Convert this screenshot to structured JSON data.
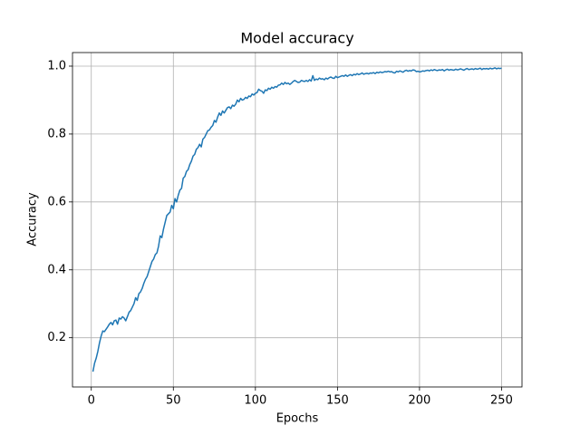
{
  "chart_data": {
    "type": "line",
    "title": "Model accuracy",
    "x_label": "Epochs",
    "y_label": "Accuracy",
    "color": "#1f77b4",
    "grid": true,
    "xlim": [
      -11.45,
      262.45
    ],
    "ylim": [
      0.055,
      1.04
    ],
    "xticks": [
      0,
      50,
      100,
      150,
      200,
      250
    ],
    "yticks": [
      0.2,
      0.4,
      0.6,
      0.8,
      {
        "value": 1,
        "label": "1.0"
      }
    ],
    "x": [
      1,
      2,
      3,
      4,
      5,
      6,
      7,
      8,
      9,
      10,
      11,
      12,
      13,
      14,
      15,
      16,
      17,
      18,
      19,
      20,
      21,
      22,
      23,
      24,
      25,
      26,
      27,
      28,
      29,
      30,
      31,
      32,
      33,
      34,
      35,
      36,
      37,
      38,
      39,
      40,
      41,
      42,
      43,
      44,
      45,
      46,
      47,
      48,
      49,
      50,
      51,
      52,
      53,
      54,
      55,
      56,
      57,
      58,
      59,
      60,
      61,
      62,
      63,
      64,
      65,
      66,
      67,
      68,
      69,
      70,
      71,
      72,
      73,
      74,
      75,
      76,
      77,
      78,
      79,
      80,
      81,
      82,
      83,
      84,
      85,
      86,
      87,
      88,
      89,
      90,
      91,
      92,
      93,
      94,
      95,
      96,
      97,
      98,
      99,
      100,
      101,
      102,
      103,
      104,
      105,
      106,
      107,
      108,
      109,
      110,
      111,
      112,
      113,
      114,
      115,
      116,
      117,
      118,
      119,
      120,
      121,
      122,
      123,
      124,
      125,
      126,
      127,
      128,
      129,
      130,
      131,
      132,
      133,
      134,
      135,
      136,
      137,
      138,
      139,
      140,
      141,
      142,
      143,
      144,
      145,
      146,
      147,
      148,
      149,
      150,
      151,
      152,
      153,
      154,
      155,
      156,
      157,
      158,
      159,
      160,
      161,
      162,
      163,
      164,
      165,
      166,
      167,
      168,
      169,
      170,
      171,
      172,
      173,
      174,
      175,
      176,
      177,
      178,
      179,
      180,
      181,
      182,
      183,
      184,
      185,
      186,
      187,
      188,
      189,
      190,
      191,
      192,
      193,
      194,
      195,
      196,
      197,
      198,
      199,
      200,
      201,
      202,
      203,
      204,
      205,
      206,
      207,
      208,
      209,
      210,
      211,
      212,
      213,
      214,
      215,
      216,
      217,
      218,
      219,
      220,
      221,
      222,
      223,
      224,
      225,
      226,
      227,
      228,
      229,
      230,
      231,
      232,
      233,
      234,
      235,
      236,
      237,
      238,
      239,
      240,
      241,
      242,
      243,
      244,
      245,
      246,
      247,
      248,
      249,
      250
    ],
    "values": [
      0.1,
      0.125,
      0.14,
      0.16,
      0.185,
      0.205,
      0.22,
      0.218,
      0.225,
      0.232,
      0.24,
      0.245,
      0.238,
      0.25,
      0.252,
      0.24,
      0.258,
      0.255,
      0.262,
      0.258,
      0.25,
      0.262,
      0.275,
      0.28,
      0.29,
      0.3,
      0.318,
      0.31,
      0.33,
      0.335,
      0.345,
      0.36,
      0.372,
      0.38,
      0.395,
      0.41,
      0.425,
      0.432,
      0.445,
      0.45,
      0.47,
      0.5,
      0.495,
      0.52,
      0.54,
      0.56,
      0.565,
      0.57,
      0.59,
      0.58,
      0.61,
      0.6,
      0.62,
      0.635,
      0.64,
      0.67,
      0.675,
      0.69,
      0.695,
      0.71,
      0.72,
      0.735,
      0.74,
      0.755,
      0.76,
      0.77,
      0.762,
      0.785,
      0.79,
      0.8,
      0.81,
      0.812,
      0.82,
      0.825,
      0.84,
      0.835,
      0.85,
      0.862,
      0.855,
      0.868,
      0.862,
      0.87,
      0.878,
      0.88,
      0.875,
      0.885,
      0.882,
      0.888,
      0.9,
      0.895,
      0.905,
      0.9,
      0.902,
      0.908,
      0.905,
      0.912,
      0.91,
      0.918,
      0.915,
      0.92,
      0.922,
      0.932,
      0.928,
      0.926,
      0.92,
      0.93,
      0.928,
      0.935,
      0.932,
      0.938,
      0.935,
      0.94,
      0.938,
      0.944,
      0.945,
      0.95,
      0.946,
      0.952,
      0.948,
      0.95,
      0.946,
      0.95,
      0.955,
      0.958,
      0.955,
      0.952,
      0.953,
      0.958,
      0.956,
      0.955,
      0.958,
      0.955,
      0.96,
      0.956,
      0.972,
      0.958,
      0.962,
      0.96,
      0.965,
      0.962,
      0.963,
      0.96,
      0.965,
      0.962,
      0.966,
      0.968,
      0.965,
      0.964,
      0.97,
      0.966,
      0.968,
      0.97,
      0.972,
      0.97,
      0.974,
      0.97,
      0.973,
      0.975,
      0.972,
      0.976,
      0.974,
      0.978,
      0.975,
      0.977,
      0.98,
      0.976,
      0.978,
      0.979,
      0.977,
      0.98,
      0.979,
      0.981,
      0.978,
      0.982,
      0.98,
      0.983,
      0.981,
      0.982,
      0.984,
      0.983,
      0.985,
      0.983,
      0.984,
      0.981,
      0.98,
      0.985,
      0.983,
      0.986,
      0.984,
      0.982,
      0.986,
      0.988,
      0.985,
      0.987,
      0.986,
      0.989,
      0.988,
      0.984,
      0.985,
      0.983,
      0.984,
      0.986,
      0.985,
      0.987,
      0.988,
      0.986,
      0.989,
      0.987,
      0.99,
      0.988,
      0.987,
      0.989,
      0.988,
      0.99,
      0.986,
      0.989,
      0.991,
      0.988,
      0.99,
      0.989,
      0.988,
      0.991,
      0.989,
      0.99,
      0.992,
      0.99,
      0.988,
      0.991,
      0.993,
      0.99,
      0.991,
      0.992,
      0.99,
      0.993,
      0.991,
      0.992,
      0.994,
      0.99,
      0.993,
      0.992,
      0.993,
      0.991,
      0.994,
      0.992,
      0.993,
      0.995,
      0.992,
      0.994,
      0.993,
      0.994
    ]
  }
}
